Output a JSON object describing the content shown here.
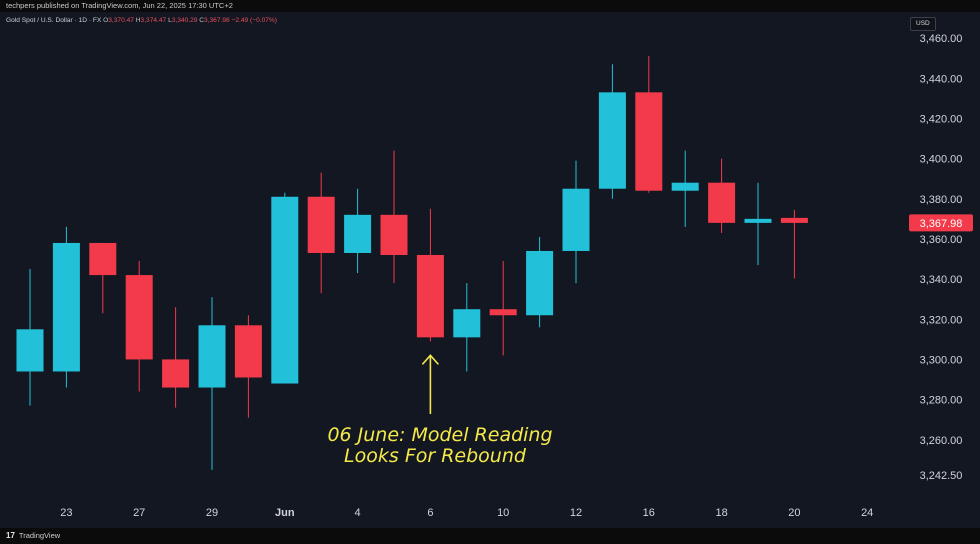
{
  "header": {
    "publish_text": "techpers published on TradingView.com, Jun 22, 2025 17:30 UTC+2"
  },
  "legend": {
    "symbol": "Gold Spot / U.S. Dollar · 1D · FX",
    "open_label": "O",
    "open": "3,370.47",
    "high_label": "H",
    "high": "3,374.47",
    "low_label": "L",
    "low": "3,340.29",
    "close_label": "C",
    "close": "3,367.98",
    "change": "−2.49 (−0.07%)"
  },
  "currency": "USD",
  "footer": {
    "logo_mark": "17",
    "logo_text": "TradingView"
  },
  "colors": {
    "background": "#131722",
    "up": "#22c1d9",
    "down": "#f23a4a",
    "annotation": "#f5e94a",
    "axis_text": "#d1d4dc",
    "price_tag": "#f23a4a"
  },
  "chart_data": {
    "type": "candlestick",
    "x_tick_labels": [
      "23",
      "27",
      "29",
      "Jun",
      "4",
      "6",
      "10",
      "12",
      "16",
      "18",
      "20",
      "24"
    ],
    "x_tick_slots": [
      1,
      3,
      5,
      7,
      9,
      11,
      13,
      15,
      17,
      19,
      21,
      23
    ],
    "y_ticks": [
      3242.5,
      3260,
      3280,
      3300,
      3320,
      3340,
      3360,
      3380,
      3400,
      3420,
      3440,
      3460
    ],
    "y_tick_labels": [
      "3,242.50",
      "3,260.00",
      "3,280.00",
      "3,300.00",
      "3,320.00",
      "3,340.00",
      "3,360.00",
      "3,380.00",
      "3,400.00",
      "3,420.00",
      "3,440.00",
      "3,460.00"
    ],
    "ylim": [
      3230,
      3473
    ],
    "last_price": 3367.98,
    "last_price_label": "3,367.98",
    "candles": [
      {
        "slot": 0,
        "open": 3294,
        "high": 3345,
        "low": 3277,
        "close": 3315
      },
      {
        "slot": 1,
        "open": 3294,
        "high": 3366,
        "low": 3286,
        "close": 3358
      },
      {
        "slot": 2,
        "open": 3358,
        "high": 3358,
        "low": 3323,
        "close": 3342
      },
      {
        "slot": 3,
        "open": 3342,
        "high": 3349,
        "low": 3284,
        "close": 3300
      },
      {
        "slot": 4,
        "open": 3300,
        "high": 3326,
        "low": 3276,
        "close": 3286
      },
      {
        "slot": 5,
        "open": 3286,
        "high": 3331,
        "low": 3245,
        "close": 3317
      },
      {
        "slot": 6,
        "open": 3317,
        "high": 3322,
        "low": 3271,
        "close": 3291
      },
      {
        "slot": 7,
        "open": 3288,
        "high": 3383,
        "low": 3288,
        "close": 3381
      },
      {
        "slot": 8,
        "open": 3381,
        "high": 3393,
        "low": 3333,
        "close": 3353
      },
      {
        "slot": 9,
        "open": 3353,
        "high": 3385,
        "low": 3343,
        "close": 3372
      },
      {
        "slot": 10,
        "open": 3372,
        "high": 3404,
        "low": 3338,
        "close": 3352
      },
      {
        "slot": 11,
        "open": 3352,
        "high": 3375,
        "low": 3309,
        "close": 3311
      },
      {
        "slot": 12,
        "open": 3311,
        "high": 3338,
        "low": 3294,
        "close": 3325
      },
      {
        "slot": 13,
        "open": 3325,
        "high": 3349,
        "low": 3302,
        "close": 3322
      },
      {
        "slot": 14,
        "open": 3322,
        "high": 3361,
        "low": 3316,
        "close": 3354
      },
      {
        "slot": 15,
        "open": 3354,
        "high": 3399,
        "low": 3338,
        "close": 3385
      },
      {
        "slot": 16,
        "open": 3385,
        "high": 3447,
        "low": 3380,
        "close": 3433
      },
      {
        "slot": 17,
        "open": 3433,
        "high": 3451,
        "low": 3383,
        "close": 3384
      },
      {
        "slot": 18,
        "open": 3384,
        "high": 3404,
        "low": 3366,
        "close": 3388
      },
      {
        "slot": 19,
        "open": 3388,
        "high": 3400,
        "low": 3363,
        "close": 3368
      },
      {
        "slot": 20,
        "open": 3368,
        "high": 3388,
        "low": 3347,
        "close": 3370
      },
      {
        "slot": 21,
        "open": 3370.47,
        "high": 3374.47,
        "low": 3340.29,
        "close": 3367.98
      }
    ],
    "annotation": {
      "slot": 11,
      "line1": "06 June: Model Reading",
      "line2": "Looks For Rebound"
    }
  }
}
